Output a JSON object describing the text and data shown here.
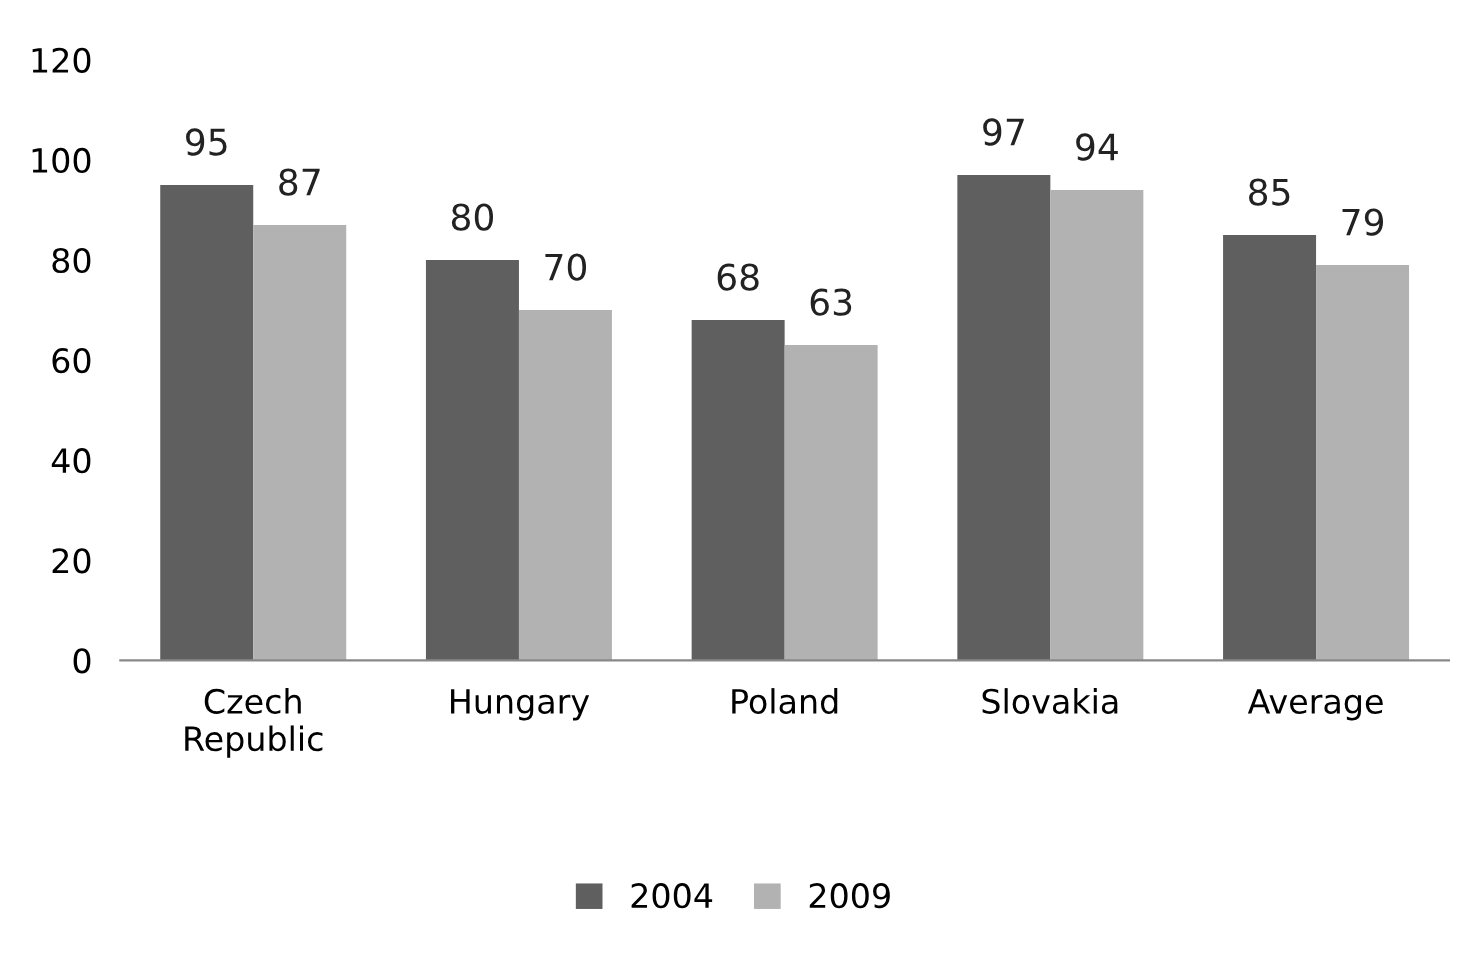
{
  "chart_data": {
    "type": "bar",
    "categories": [
      "Czech\nRepublic",
      "Hungary",
      "Poland",
      "Slovakia",
      "Average"
    ],
    "series": [
      {
        "name": "2004",
        "color": "#5f5f5f",
        "values": [
          95,
          80,
          68,
          97,
          85
        ]
      },
      {
        "name": "2009",
        "color": "#b2b2b2",
        "values": [
          87,
          70,
          63,
          94,
          79
        ]
      }
    ],
    "ylim": [
      0,
      120
    ],
    "yticks": [
      0,
      20,
      40,
      60,
      80,
      100,
      120
    ],
    "data_labels": true,
    "legend": "bottom",
    "grid": false
  }
}
